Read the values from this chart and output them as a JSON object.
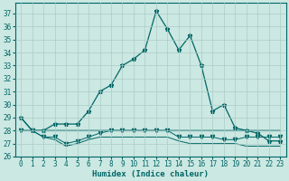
{
  "xlabel": "Humidex (Indice chaleur)",
  "xlim": [
    -0.5,
    23.5
  ],
  "ylim": [
    26,
    37.8
  ],
  "yticks": [
    26,
    27,
    28,
    29,
    30,
    31,
    32,
    33,
    34,
    35,
    36,
    37
  ],
  "xticks": [
    0,
    1,
    2,
    3,
    4,
    5,
    6,
    7,
    8,
    9,
    10,
    11,
    12,
    13,
    14,
    15,
    16,
    17,
    18,
    19,
    20,
    21,
    22,
    23
  ],
  "bg_color": "#cce8e2",
  "line_color": "#006666",
  "grid_color": "#aaccc8",
  "series1_y": [
    29,
    28,
    28,
    28.5,
    28.5,
    28.5,
    29.5,
    31,
    31.5,
    33,
    33.5,
    34.2,
    37.2,
    35.8,
    34.2,
    35.3,
    33,
    29.5,
    30,
    28.2,
    28,
    27.8,
    27.2,
    27.2
  ],
  "series2_y": [
    28,
    28,
    28,
    28,
    28,
    28,
    28,
    28,
    28,
    28,
    28,
    28,
    28,
    28,
    28,
    28,
    28,
    28,
    28,
    28,
    28,
    28,
    28,
    28
  ],
  "series3_y": [
    29,
    28,
    28,
    28,
    28,
    28,
    28,
    28,
    28,
    28,
    28,
    28,
    28,
    28,
    28,
    28,
    28,
    28,
    28,
    28,
    28,
    28,
    28,
    28
  ],
  "series4_y": [
    28,
    28,
    27.5,
    27.5,
    27,
    27.2,
    27.5,
    27.8,
    28,
    28,
    28,
    28,
    28,
    28,
    27.5,
    27.5,
    27.5,
    27.5,
    27.3,
    27.3,
    27.5,
    27.5,
    27.5,
    27.5
  ],
  "series5_y": [
    28,
    28,
    27.5,
    27.3,
    26.8,
    27,
    27.3,
    27.5,
    27.5,
    27.5,
    27.5,
    27.5,
    27.5,
    27.5,
    27.2,
    27.0,
    27.0,
    27.0,
    27.0,
    27.0,
    26.8,
    26.8,
    26.8,
    26.8
  ]
}
